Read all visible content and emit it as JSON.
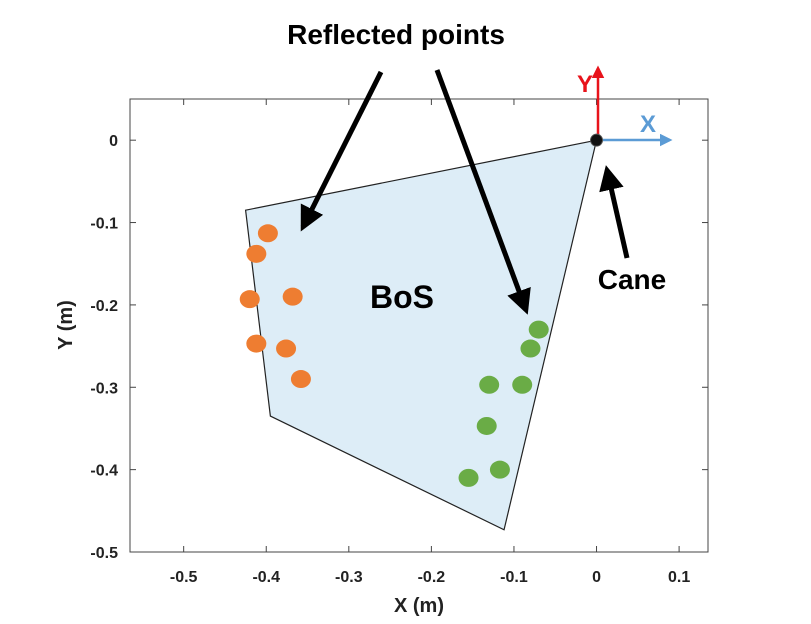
{
  "chart_data": {
    "type": "scatter",
    "title": "",
    "xlabel": "X (m)",
    "ylabel": "Y (m)",
    "xlim": [
      -0.565,
      0.135
    ],
    "ylim": [
      -0.5,
      0.05
    ],
    "xticks": [
      -0.5,
      -0.4,
      -0.3,
      -0.2,
      -0.1,
      0,
      0.1
    ],
    "yticks": [
      0,
      -0.1,
      -0.2,
      -0.3,
      -0.4,
      -0.5
    ],
    "xtick_labels": [
      "-0.5",
      "-0.4",
      "-0.3",
      "-0.2",
      "-0.1",
      "0",
      "0.1"
    ],
    "ytick_labels": [
      "0",
      "-0.1",
      "-0.2",
      "-0.3",
      "-0.4",
      "-0.5"
    ],
    "grid": false,
    "polygon": {
      "label": "BoS",
      "fill": "#ddedf7",
      "edge": "#222222",
      "vertices": [
        [
          0,
          0
        ],
        [
          -0.425,
          -0.085
        ],
        [
          -0.395,
          -0.335
        ],
        [
          -0.112,
          -0.473
        ]
      ]
    },
    "series": [
      {
        "color": "#ee7d31",
        "points": [
          [
            -0.398,
            -0.113
          ],
          [
            -0.412,
            -0.138
          ],
          [
            -0.42,
            -0.193
          ],
          [
            -0.368,
            -0.19
          ],
          [
            -0.412,
            -0.247
          ],
          [
            -0.376,
            -0.253
          ],
          [
            -0.358,
            -0.29
          ]
        ]
      },
      {
        "color": "#6aac46",
        "points": [
          [
            -0.07,
            -0.23
          ],
          [
            -0.08,
            -0.253
          ],
          [
            -0.13,
            -0.297
          ],
          [
            -0.09,
            -0.297
          ],
          [
            -0.133,
            -0.347
          ],
          [
            -0.155,
            -0.41
          ],
          [
            -0.117,
            -0.4
          ]
        ]
      }
    ],
    "cane": {
      "label": "Cane",
      "position": [
        0,
        0
      ],
      "color": "#111111"
    },
    "local_axes": {
      "x_label": "X",
      "x_color": "#5b9bd5",
      "y_label": "Y",
      "y_color": "#e8131b"
    },
    "annotations": {
      "reflected_label": "Reflected points"
    }
  }
}
